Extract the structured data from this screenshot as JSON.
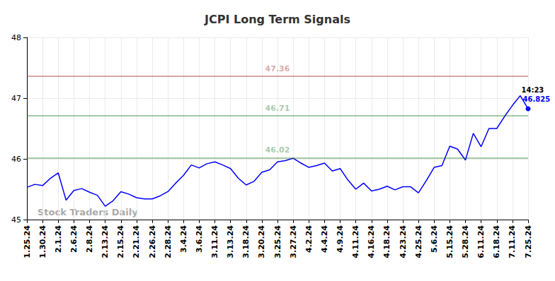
{
  "chart_data": {
    "type": "line",
    "title": "JCPI Long Term Signals",
    "watermark": "Stock Traders Daily",
    "categories": [
      "1.25.24",
      null,
      "1.30.24",
      null,
      "2.1.24",
      null,
      "2.6.24",
      null,
      "2.8.24",
      null,
      "2.13.24",
      null,
      "2.15.24",
      null,
      "2.21.24",
      null,
      "2.26.24",
      null,
      "2.28.24",
      null,
      "3.4.24",
      null,
      "3.6.24",
      null,
      "3.11.24",
      null,
      "3.13.24",
      null,
      "3.18.24",
      null,
      "3.20.24",
      null,
      "3.25.24",
      null,
      "3.27.24",
      null,
      "4.2.24",
      null,
      "4.4.24",
      null,
      "4.9.24",
      null,
      "4.11.24",
      null,
      "4.16.24",
      null,
      "4.18.24",
      null,
      "4.23.24",
      null,
      "4.25.24",
      null,
      "5.6.24",
      null,
      "5.15.24",
      null,
      "5.28.24",
      null,
      "6.11.24",
      null,
      "6.18.24",
      null,
      "7.11.24",
      null,
      "7.25.24"
    ],
    "values": [
      45.53,
      45.58,
      45.56,
      45.68,
      45.77,
      45.32,
      45.48,
      45.51,
      45.45,
      45.4,
      45.22,
      45.31,
      45.46,
      45.42,
      45.36,
      45.34,
      45.34,
      45.39,
      45.46,
      45.6,
      45.73,
      45.9,
      45.85,
      45.92,
      45.95,
      45.9,
      45.84,
      45.68,
      45.57,
      45.63,
      45.78,
      45.82,
      45.95,
      45.97,
      46.01,
      45.93,
      45.86,
      45.89,
      45.93,
      45.8,
      45.84,
      45.65,
      45.5,
      45.6,
      45.47,
      45.5,
      45.55,
      45.49,
      45.54,
      45.54,
      45.44,
      45.64,
      45.86,
      45.89,
      46.21,
      46.16,
      45.98,
      46.42,
      46.2,
      46.5,
      46.5,
      46.7,
      46.88,
      47.04,
      46.825
    ],
    "color": "#0000ff",
    "last_point_time": "14:23",
    "signal_lines": [
      {
        "value": 47.36,
        "color": "#8b0000"
      },
      {
        "value": 46.71,
        "color": "#006400"
      },
      {
        "value": 46.02,
        "color": "#006400"
      }
    ],
    "ylim": [
      45,
      48
    ],
    "yticks": [
      45,
      46,
      47,
      48
    ],
    "grid": true
  }
}
